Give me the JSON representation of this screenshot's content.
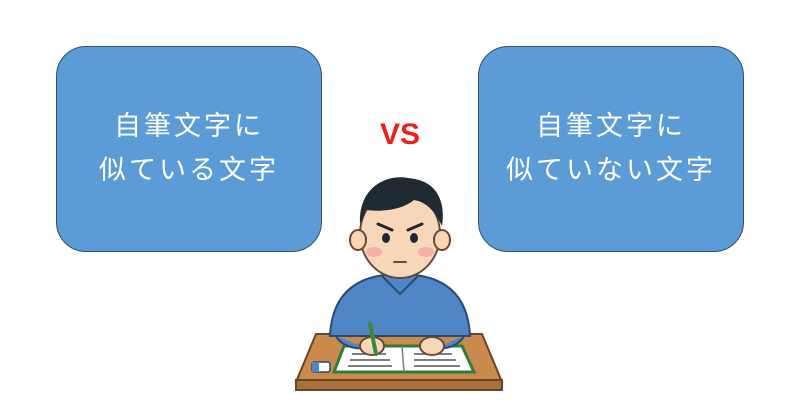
{
  "left_card": {
    "line1": "自筆文字に",
    "line2": "似ている文字"
  },
  "right_card": {
    "line1": "自筆文字に",
    "line2": "似ていない文字"
  },
  "vs_label": "VS",
  "colors": {
    "card_fill": "#5b9bd6",
    "card_border": "#33506e",
    "vs": "#e8221a",
    "shirt": "#4f86c6",
    "desk": "#c98a4b"
  }
}
